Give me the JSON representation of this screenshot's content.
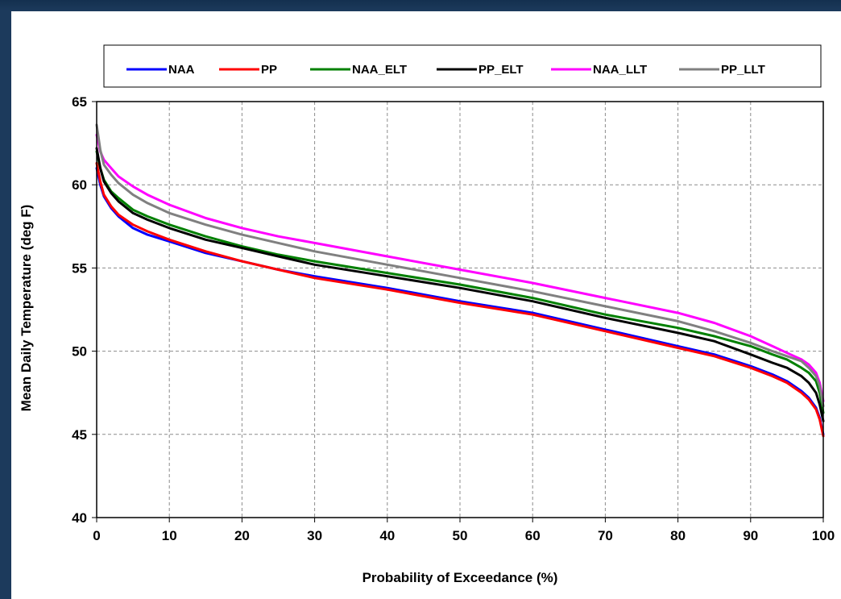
{
  "chart_data": {
    "type": "line",
    "title": "",
    "xlabel": "Probability of Exceedance (%)",
    "ylabel": "Mean Daily Temperature (deg F)",
    "xlim": [
      0,
      100
    ],
    "ylim": [
      40,
      65
    ],
    "x_ticks": [
      0,
      10,
      20,
      30,
      40,
      50,
      60,
      70,
      80,
      90,
      100
    ],
    "y_ticks": [
      40,
      45,
      50,
      55,
      60,
      65
    ],
    "grid": true,
    "legend_position": "top",
    "x": [
      0,
      0.5,
      1,
      2,
      3,
      5,
      7,
      10,
      15,
      20,
      25,
      30,
      40,
      50,
      60,
      70,
      80,
      85,
      90,
      93,
      95,
      97,
      98,
      99,
      99.5,
      100
    ],
    "series": [
      {
        "name": "NAA",
        "color": "#0000ff",
        "values": [
          61.0,
          60.0,
          59.3,
          58.6,
          58.1,
          57.4,
          57.0,
          56.6,
          55.9,
          55.4,
          54.9,
          54.5,
          53.8,
          53.0,
          52.3,
          51.3,
          50.3,
          49.8,
          49.1,
          48.6,
          48.2,
          47.6,
          47.2,
          46.6,
          46.0,
          45.0
        ]
      },
      {
        "name": "PP",
        "color": "#ff0000",
        "values": [
          61.3,
          60.2,
          59.4,
          58.7,
          58.2,
          57.6,
          57.2,
          56.7,
          56.0,
          55.4,
          54.9,
          54.4,
          53.7,
          52.9,
          52.2,
          51.2,
          50.2,
          49.7,
          49.0,
          48.5,
          48.1,
          47.5,
          47.1,
          46.5,
          45.9,
          44.9
        ]
      },
      {
        "name": "NAA_ELT",
        "color": "#008000",
        "values": [
          62.0,
          61.0,
          60.3,
          59.6,
          59.2,
          58.5,
          58.1,
          57.6,
          56.9,
          56.3,
          55.8,
          55.4,
          54.7,
          54.0,
          53.2,
          52.2,
          51.4,
          50.9,
          50.3,
          49.8,
          49.5,
          49.0,
          48.7,
          48.2,
          47.5,
          46.3
        ]
      },
      {
        "name": "PP_ELT",
        "color": "#000000",
        "values": [
          62.2,
          61.0,
          60.2,
          59.5,
          59.0,
          58.3,
          57.9,
          57.4,
          56.7,
          56.2,
          55.7,
          55.2,
          54.5,
          53.8,
          53.0,
          52.0,
          51.1,
          50.6,
          49.8,
          49.3,
          49.0,
          48.5,
          48.1,
          47.5,
          46.8,
          45.8
        ]
      },
      {
        "name": "NAA_LLT",
        "color": "#ff00ff",
        "values": [
          63.0,
          62.0,
          61.5,
          61.0,
          60.5,
          59.9,
          59.4,
          58.8,
          58.0,
          57.4,
          56.9,
          56.5,
          55.7,
          54.9,
          54.1,
          53.2,
          52.3,
          51.7,
          50.9,
          50.3,
          49.9,
          49.5,
          49.2,
          48.7,
          48.1,
          47.0
        ]
      },
      {
        "name": "PP_LLT",
        "color": "#808080",
        "values": [
          63.6,
          62.1,
          61.2,
          60.6,
          60.1,
          59.4,
          58.9,
          58.3,
          57.6,
          57.0,
          56.5,
          56.0,
          55.2,
          54.4,
          53.6,
          52.7,
          51.8,
          51.2,
          50.5,
          50.0,
          49.7,
          49.4,
          49.0,
          48.5,
          47.9,
          46.7
        ]
      }
    ]
  }
}
